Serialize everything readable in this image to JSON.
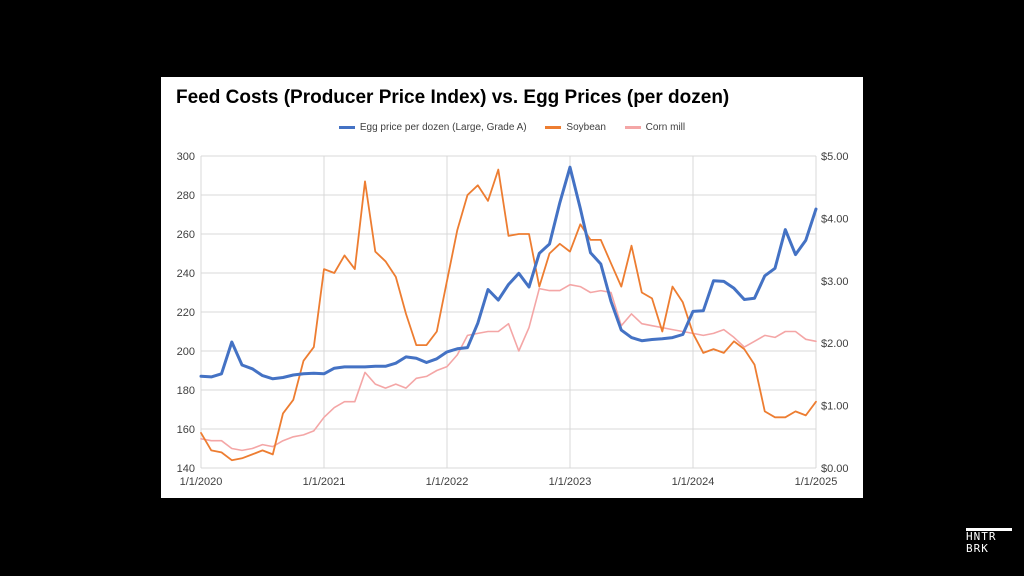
{
  "chart_data": {
    "type": "line",
    "title": "Feed Costs (Producer Price Index) vs. Egg Prices (per dozen)",
    "legend": [
      "Egg price per dozen (Large, Grade A)",
      "Soybean",
      "Corn mill"
    ],
    "legend_position": "top",
    "grid": true,
    "x_ticks": [
      "1/1/2020",
      "1/1/2021",
      "1/1/2022",
      "1/1/2023",
      "1/1/2024",
      "1/1/2025"
    ],
    "x_range": [
      "2020-01",
      "2025-01"
    ],
    "y_left": {
      "range": [
        140,
        300
      ],
      "ticks": [
        "140",
        "160",
        "180",
        "200",
        "220",
        "240",
        "260",
        "280",
        "300"
      ]
    },
    "y_right": {
      "range": [
        0,
        5
      ],
      "ticks": [
        "$0.00",
        "$1.00",
        "$2.00",
        "$3.00",
        "$4.00",
        "$5.00"
      ]
    },
    "x": [
      "2020-01",
      "2020-02",
      "2020-03",
      "2020-04",
      "2020-05",
      "2020-06",
      "2020-07",
      "2020-08",
      "2020-09",
      "2020-10",
      "2020-11",
      "2020-12",
      "2021-01",
      "2021-02",
      "2021-03",
      "2021-04",
      "2021-05",
      "2021-06",
      "2021-07",
      "2021-08",
      "2021-09",
      "2021-10",
      "2021-11",
      "2021-12",
      "2022-01",
      "2022-02",
      "2022-03",
      "2022-04",
      "2022-05",
      "2022-06",
      "2022-07",
      "2022-08",
      "2022-09",
      "2022-10",
      "2022-11",
      "2022-12",
      "2023-01",
      "2023-02",
      "2023-03",
      "2023-04",
      "2023-05",
      "2023-06",
      "2023-07",
      "2023-08",
      "2023-09",
      "2023-10",
      "2023-11",
      "2023-12",
      "2024-01",
      "2024-02",
      "2024-03",
      "2024-04",
      "2024-05",
      "2024-06",
      "2024-07",
      "2024-08",
      "2024-09",
      "2024-10",
      "2024-11",
      "2024-12",
      "2025-01"
    ],
    "series": [
      {
        "name": "Egg price per dozen (Large, Grade A)",
        "axis": "right",
        "color": "#4472C4",
        "values": [
          1.47,
          1.46,
          1.51,
          2.02,
          1.65,
          1.59,
          1.48,
          1.43,
          1.45,
          1.49,
          1.51,
          1.52,
          1.51,
          1.6,
          1.62,
          1.62,
          1.62,
          1.63,
          1.63,
          1.68,
          1.78,
          1.76,
          1.69,
          1.75,
          1.86,
          1.91,
          1.93,
          2.32,
          2.86,
          2.69,
          2.94,
          3.12,
          2.9,
          3.44,
          3.59,
          4.25,
          4.82,
          4.16,
          3.45,
          3.27,
          2.67,
          2.21,
          2.09,
          2.04,
          2.06,
          2.07,
          2.09,
          2.14,
          2.51,
          2.52,
          3.0,
          2.99,
          2.88,
          2.7,
          2.72,
          3.08,
          3.2,
          3.82,
          3.42,
          3.65,
          4.15
        ]
      },
      {
        "name": "Soybean",
        "axis": "left",
        "color": "#ED7D31",
        "values": [
          158,
          149,
          148,
          144,
          145,
          147,
          149,
          147,
          168,
          175,
          195,
          202,
          242,
          240,
          249,
          242,
          287,
          251,
          246,
          238,
          219,
          203,
          203,
          210,
          236,
          262,
          280,
          285,
          277,
          293,
          259,
          260,
          260,
          233,
          250,
          255,
          251,
          265,
          257,
          257,
          245,
          233,
          254,
          230,
          227,
          210,
          233,
          225,
          209,
          199,
          201,
          199,
          205,
          201,
          193,
          169,
          166,
          166,
          169,
          167,
          174
        ]
      },
      {
        "name": "Corn mill",
        "axis": "left",
        "color": "#F4A6A6",
        "values": [
          155,
          154,
          154,
          150,
          149,
          150,
          152,
          151,
          154,
          156,
          157,
          159,
          166,
          171,
          174,
          174,
          189,
          183,
          181,
          183,
          181,
          186,
          187,
          190,
          192,
          198,
          208,
          209,
          210,
          210,
          214,
          200,
          212,
          232,
          231,
          231,
          234,
          233,
          230,
          231,
          230,
          213,
          219,
          214,
          213,
          212,
          211,
          210,
          209,
          208,
          209,
          211,
          207,
          202,
          205,
          208,
          207,
          210,
          210,
          206,
          205
        ]
      }
    ]
  },
  "brand": {
    "line1": "HNTR",
    "line2": "BRK"
  }
}
